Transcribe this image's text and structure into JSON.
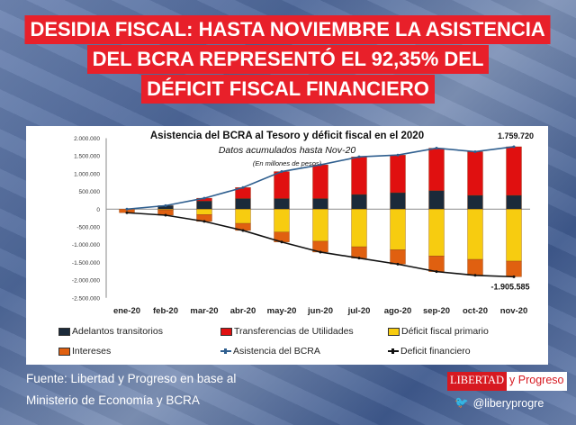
{
  "headline": [
    "DESIDIA FISCAL: HASTA NOVIEMBRE LA ASISTENCIA",
    "DEL BCRA REPRESENTÓ EL 92,35% DEL",
    "DÉFICIT FISCAL FINANCIERO"
  ],
  "footer": {
    "source_line1": "Fuente: Libertad y Progreso en base al",
    "source_line2": "Ministerio de Economía y BCRA",
    "logo_left": "LIBERTAD",
    "logo_right": "y Progreso",
    "twitter": "@liberyprogre"
  },
  "colors": {
    "banner": "#e8202a",
    "adelantos": "#1b2a3a",
    "transferencias": "#e01010",
    "primario": "#f7cc10",
    "intereses": "#e06010",
    "asistencia": "#2f5f8f",
    "deficit": "#111111"
  },
  "chart_data": {
    "type": "bar",
    "stacked": true,
    "title": "Asistencia del BCRA al Tesoro y déficit fiscal en el 2020",
    "subtitle": "Datos acumulados hasta Nov-20",
    "unit_note": "(En millones de pesos)",
    "categories": [
      "ene-20",
      "feb-20",
      "mar-20",
      "abr-20",
      "may-20",
      "jun-20",
      "jul-20",
      "ago-20",
      "sep-20",
      "oct-20",
      "nov-20"
    ],
    "ylim": [
      -2500000,
      2000000
    ],
    "yticks": [
      2000000,
      1500000,
      1000000,
      500000,
      0,
      -500000,
      -1000000,
      -1500000,
      -2000000,
      -2500000
    ],
    "ytick_labels": [
      "2.000.000",
      "1.500.000",
      "1.000.000",
      "500.000",
      "0",
      "-500.000",
      "-1.000.000",
      "-1.500.000",
      "-2.000.000",
      "-2.500.000"
    ],
    "grid": false,
    "legend_position": "bottom",
    "series": [
      {
        "name": "Adelantos transitorios",
        "kind": "bar",
        "values": [
          0,
          100000,
          230000,
          300000,
          300000,
          300000,
          415000,
          465000,
          525000,
          390000,
          390000
        ]
      },
      {
        "name": "Transferencias de Utilidades",
        "kind": "bar",
        "values": [
          0,
          0,
          80000,
          310000,
          760000,
          950000,
          1060000,
          1060000,
          1195000,
          1230000,
          1369720
        ]
      },
      {
        "name": "Déficit fiscal primario",
        "kind": "bar",
        "values": [
          0,
          -20000,
          -150000,
          -400000,
          -645000,
          -905000,
          -1060000,
          -1145000,
          -1320000,
          -1415000,
          -1465000
        ]
      },
      {
        "name": "Intereses",
        "kind": "bar",
        "values": [
          -100000,
          -150000,
          -195000,
          -200000,
          -280000,
          -305000,
          -320000,
          -405000,
          -440000,
          -450000,
          -440585
        ]
      },
      {
        "name": "Asistencia del BCRA",
        "kind": "line",
        "values": [
          0,
          100000,
          310000,
          610000,
          1060000,
          1250000,
          1475000,
          1525000,
          1720000,
          1620000,
          1759720
        ]
      },
      {
        "name": "Deficit financiero",
        "kind": "line",
        "values": [
          -100000,
          -170000,
          -345000,
          -600000,
          -925000,
          -1210000,
          -1380000,
          -1550000,
          -1760000,
          -1865000,
          -1905585
        ]
      }
    ],
    "annotations": [
      "1.759.720",
      "-1.905.585"
    ]
  }
}
